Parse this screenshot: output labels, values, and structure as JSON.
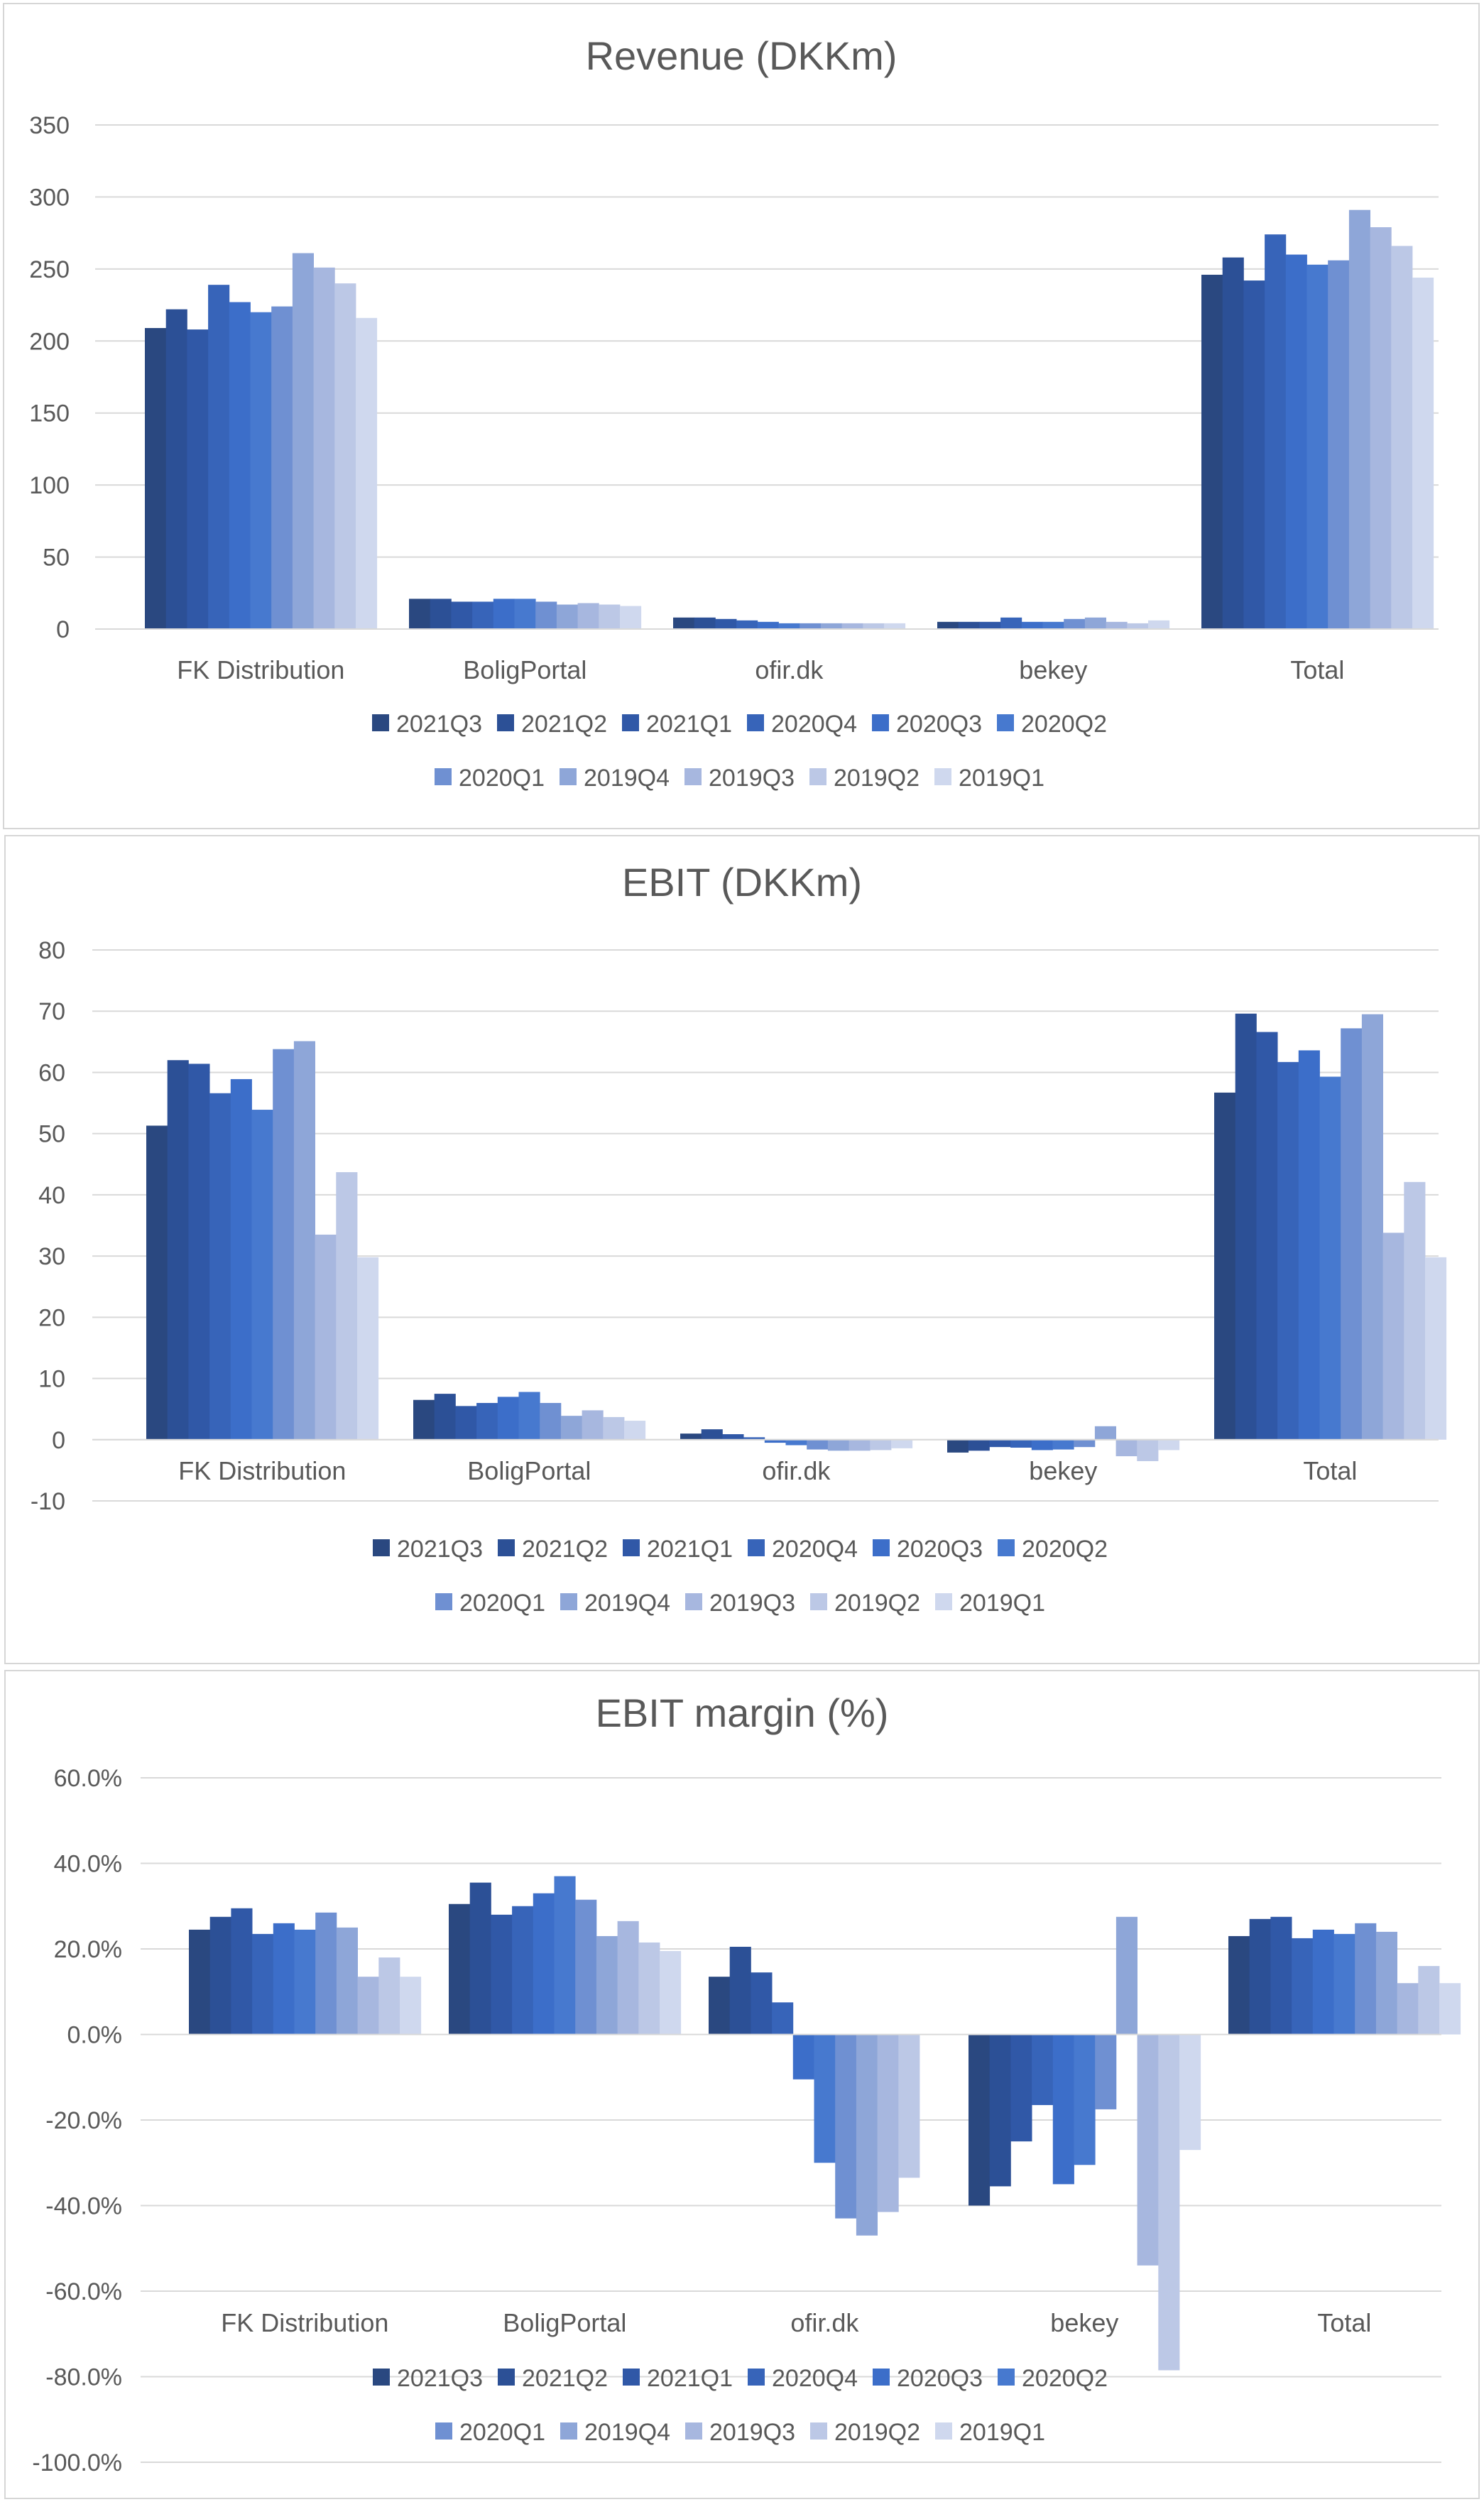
{
  "series_names": [
    "2021Q3",
    "2021Q2",
    "2021Q1",
    "2020Q4",
    "2020Q3",
    "2020Q2",
    "2020Q1",
    "2019Q4",
    "2019Q3",
    "2019Q2",
    "2019Q1"
  ],
  "series_colors": [
    "#2a4880",
    "#2c5096",
    "#3058a7",
    "#3764b9",
    "#3c6ec9",
    "#4779cf",
    "#6f90d2",
    "#8ea6d8",
    "#a7b7df",
    "#bcc8e6",
    "#cfd8ee"
  ],
  "chart_data": [
    {
      "type": "bar",
      "title": "Revenue (DKKm)",
      "categories": [
        "FK Distribution",
        "BoligPortal",
        "ofir.dk",
        "bekey",
        "Total"
      ],
      "ylim": [
        0,
        350
      ],
      "yticks": [
        0,
        50,
        100,
        150,
        200,
        250,
        300,
        350
      ],
      "ytick_labels": [
        "0",
        "50",
        "100",
        "150",
        "200",
        "250",
        "300",
        "350"
      ],
      "grid": true,
      "legend": "bottom",
      "series": [
        {
          "name": "2021Q3",
          "values": [
            209,
            21,
            8,
            5,
            246
          ]
        },
        {
          "name": "2021Q2",
          "values": [
            222,
            21,
            8,
            5,
            258
          ]
        },
        {
          "name": "2021Q1",
          "values": [
            208,
            19,
            7,
            5,
            242
          ]
        },
        {
          "name": "2020Q4",
          "values": [
            239,
            19,
            6,
            8,
            274
          ]
        },
        {
          "name": "2020Q3",
          "values": [
            227,
            21,
            5,
            5,
            260
          ]
        },
        {
          "name": "2020Q2",
          "values": [
            220,
            21,
            4,
            5,
            253
          ]
        },
        {
          "name": "2020Q1",
          "values": [
            224,
            19,
            4,
            7,
            256
          ]
        },
        {
          "name": "2019Q4",
          "values": [
            261,
            17,
            4,
            8,
            291
          ]
        },
        {
          "name": "2019Q3",
          "values": [
            251,
            18,
            4,
            5,
            279
          ]
        },
        {
          "name": "2019Q2",
          "values": [
            240,
            17,
            4,
            4,
            266
          ]
        },
        {
          "name": "2019Q1",
          "values": [
            216,
            16,
            4,
            6,
            244
          ]
        }
      ]
    },
    {
      "type": "bar",
      "title": "EBIT (DKKm)",
      "categories": [
        "FK Distribution",
        "BoligPortal",
        "ofir.dk",
        "bekey",
        "Total"
      ],
      "ylim": [
        -10,
        80
      ],
      "yticks": [
        -10,
        0,
        10,
        20,
        30,
        40,
        50,
        60,
        70,
        80
      ],
      "ytick_labels": [
        "-10",
        "0",
        "10",
        "20",
        "30",
        "40",
        "50",
        "60",
        "70",
        "80"
      ],
      "grid": true,
      "legend": "bottom",
      "series": [
        {
          "name": "2021Q3",
          "values": [
            51.3,
            6.5,
            1.0,
            -2.1,
            56.7
          ]
        },
        {
          "name": "2021Q2",
          "values": [
            62.0,
            7.5,
            1.7,
            -1.8,
            69.6
          ]
        },
        {
          "name": "2021Q1",
          "values": [
            61.4,
            5.5,
            0.9,
            -1.2,
            66.6
          ]
        },
        {
          "name": "2020Q4",
          "values": [
            56.6,
            6.0,
            0.4,
            -1.3,
            61.7
          ]
        },
        {
          "name": "2020Q3",
          "values": [
            58.9,
            7.0,
            -0.5,
            -1.7,
            63.6
          ]
        },
        {
          "name": "2020Q2",
          "values": [
            53.9,
            7.8,
            -0.9,
            -1.6,
            59.3
          ]
        },
        {
          "name": "2020Q1",
          "values": [
            63.8,
            6.0,
            -1.6,
            -1.2,
            67.2
          ]
        },
        {
          "name": "2019Q4",
          "values": [
            65.1,
            3.9,
            -1.8,
            2.2,
            69.5
          ]
        },
        {
          "name": "2019Q3",
          "values": [
            33.5,
            4.8,
            -1.8,
            -2.7,
            33.8
          ]
        },
        {
          "name": "2019Q2",
          "values": [
            43.7,
            3.7,
            -1.7,
            -3.5,
            42.1
          ]
        },
        {
          "name": "2019Q1",
          "values": [
            29.8,
            3.1,
            -1.4,
            -1.7,
            29.8
          ]
        }
      ]
    },
    {
      "type": "bar",
      "title": "EBIT margin (%)",
      "categories": [
        "FK Distribution",
        "BoligPortal",
        "ofir.dk",
        "bekey",
        "Total"
      ],
      "ylim": [
        -100,
        60
      ],
      "yticks": [
        -100,
        -80,
        -60,
        -40,
        -20,
        0,
        20,
        40,
        60
      ],
      "ytick_labels": [
        "-100.0%",
        "-80.0%",
        "-60.0%",
        "-40.0%",
        "-20.0%",
        "0.0%",
        "20.0%",
        "40.0%",
        "60.0%"
      ],
      "grid": true,
      "legend": "bottom",
      "series": [
        {
          "name": "2021Q3",
          "values": [
            24.5,
            30.5,
            13.5,
            -40.0,
            23.0
          ]
        },
        {
          "name": "2021Q2",
          "values": [
            27.5,
            35.5,
            20.5,
            -35.5,
            27.0
          ]
        },
        {
          "name": "2021Q1",
          "values": [
            29.5,
            28.0,
            14.5,
            -25.0,
            27.5
          ]
        },
        {
          "name": "2020Q4",
          "values": [
            23.5,
            30.0,
            7.5,
            -16.5,
            22.5
          ]
        },
        {
          "name": "2020Q3",
          "values": [
            26.0,
            33.0,
            -10.5,
            -35.0,
            24.5
          ]
        },
        {
          "name": "2020Q2",
          "values": [
            24.5,
            37.0,
            -30.0,
            -30.5,
            23.5
          ]
        },
        {
          "name": "2020Q1",
          "values": [
            28.5,
            31.5,
            -43.0,
            -17.5,
            26.0
          ]
        },
        {
          "name": "2019Q4",
          "values": [
            25.0,
            23.0,
            -47.0,
            27.5,
            24.0
          ]
        },
        {
          "name": "2019Q3",
          "values": [
            13.5,
            26.5,
            -41.5,
            -54.0,
            12.0
          ]
        },
        {
          "name": "2019Q2",
          "values": [
            18.0,
            21.5,
            -33.5,
            -78.5,
            16.0
          ]
        },
        {
          "name": "2019Q1",
          "values": [
            13.5,
            19.5,
            null,
            -27.0,
            12.0
          ]
        }
      ]
    }
  ]
}
